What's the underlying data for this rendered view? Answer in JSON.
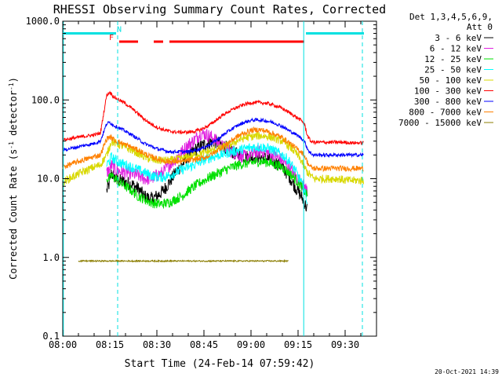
{
  "chart_data": {
    "type": "line",
    "title": "RHESSI Observing Summary Count Rates, Corrected",
    "xlabel": "Start Time (24-Feb-14 07:59:42)",
    "ylabel": "Corrected Count Rate (s⁻¹ detector⁻¹)",
    "x_unit": "minutes after 08:00",
    "xlim": [
      0,
      100
    ],
    "ylim": [
      0.1,
      1000
    ],
    "yscale": "log",
    "x_ticks": [
      {
        "value": 0,
        "label": "08:00"
      },
      {
        "value": 15,
        "label": "08:15"
      },
      {
        "value": 30,
        "label": "08:30"
      },
      {
        "value": 45,
        "label": "08:45"
      },
      {
        "value": 60,
        "label": "09:00"
      },
      {
        "value": 75,
        "label": "09:15"
      },
      {
        "value": 90,
        "label": "09:30"
      }
    ],
    "y_ticks": [
      {
        "value": 1000,
        "label": "1000.0"
      },
      {
        "value": 100,
        "label": "100.0"
      },
      {
        "value": 10,
        "label": "10.0"
      },
      {
        "value": 1,
        "label": "1.0"
      },
      {
        "value": 0.1,
        "label": "0.1"
      }
    ],
    "legend_title": [
      "Det 1,3,4,5,6,9,",
      "Att 0"
    ],
    "legend_position": "right",
    "series": [
      {
        "name": "3 - 6 keV",
        "color": "#000000",
        "noise": 0.2,
        "x": [
          14,
          15,
          15.5,
          16,
          17,
          18,
          20,
          22,
          24,
          26,
          28,
          30,
          32,
          34,
          36,
          38,
          40,
          42,
          44,
          46,
          48,
          50,
          52,
          54,
          56,
          58,
          60,
          62,
          64,
          66,
          68,
          70,
          72,
          74,
          76,
          77,
          78
        ],
        "y": [
          7,
          9,
          12,
          11,
          10,
          9.5,
          9,
          8.5,
          7.5,
          6,
          5.5,
          6,
          7,
          9,
          12,
          15,
          19,
          23,
          26,
          28,
          30,
          28,
          25,
          22,
          20,
          19,
          19,
          19,
          18.5,
          17.5,
          16,
          14,
          11,
          8,
          6,
          5,
          4
        ]
      },
      {
        "name": "6 - 12 keV",
        "color": "#e020e0",
        "noise": 0.2,
        "x": [
          14,
          15,
          15.5,
          16,
          17,
          18,
          20,
          22,
          24,
          26,
          28,
          30,
          32,
          34,
          36,
          38,
          40,
          42,
          44,
          46,
          48,
          50,
          52,
          54,
          56,
          58,
          60,
          62,
          64,
          66,
          68,
          70,
          72,
          74,
          76,
          77,
          78
        ],
        "y": [
          12,
          13,
          15,
          14,
          13,
          12.5,
          12,
          11.5,
          11,
          10,
          10,
          11,
          12,
          15,
          18,
          22,
          27,
          31,
          38,
          36,
          33,
          27,
          24,
          22,
          20,
          19,
          20,
          22,
          22,
          21,
          19,
          17,
          14,
          11,
          9,
          8,
          7
        ]
      },
      {
        "name": "12 - 25 keV",
        "color": "#00e000",
        "noise": 0.15,
        "x": [
          14,
          15,
          15.5,
          16,
          17,
          18,
          20,
          22,
          24,
          26,
          28,
          30,
          32,
          34,
          36,
          38,
          40,
          42,
          44,
          46,
          48,
          50,
          52,
          54,
          56,
          58,
          60,
          62,
          64,
          66,
          68,
          70,
          72,
          74,
          76,
          77,
          78
        ],
        "y": [
          10,
          10,
          11,
          10.5,
          10,
          9,
          8,
          7,
          6,
          5.5,
          5,
          4.8,
          4.8,
          5,
          5.5,
          6,
          7,
          8,
          9,
          10,
          11,
          12,
          13,
          14,
          15,
          15.5,
          16,
          16.5,
          16.5,
          16,
          15,
          14,
          12,
          10,
          8,
          7,
          6
        ]
      },
      {
        "name": "25 - 50 keV",
        "color": "#00ffff",
        "noise": 0.15,
        "x": [
          14,
          15,
          15.5,
          16,
          17,
          18,
          20,
          22,
          24,
          26,
          28,
          30,
          32,
          34,
          36,
          38,
          40,
          42,
          44,
          46,
          48,
          50,
          52,
          54,
          56,
          58,
          60,
          62,
          64,
          66,
          68,
          70,
          72,
          74,
          76,
          77,
          78
        ],
        "y": [
          15,
          17,
          19,
          18,
          17,
          16,
          15,
          14,
          13,
          12,
          11,
          10.5,
          10.5,
          11,
          12,
          13,
          14,
          15,
          16.5,
          18,
          19,
          20,
          21,
          22,
          23,
          24,
          25,
          25.5,
          25,
          24,
          22,
          20,
          17,
          13,
          9,
          7,
          5
        ]
      },
      {
        "name": "50 - 100 keV",
        "color": "#d8d800",
        "noise": 0.12,
        "x": [
          0,
          2,
          4,
          6,
          8,
          10,
          12,
          14,
          15,
          15.5,
          16,
          17,
          18,
          20,
          22,
          24,
          26,
          28,
          30,
          32,
          34,
          36,
          38,
          40,
          42,
          44,
          46,
          48,
          50,
          52,
          54,
          56,
          58,
          60,
          62,
          64,
          66,
          68,
          70,
          72,
          74,
          76,
          77,
          78,
          79,
          80,
          82,
          84,
          86,
          88,
          90,
          92,
          94,
          96
        ],
        "y": [
          9,
          10,
          11,
          12,
          13,
          14,
          15,
          20,
          26,
          30,
          29,
          28,
          27,
          25,
          23,
          21,
          19,
          17.5,
          17,
          17,
          17,
          17.5,
          18,
          19,
          20,
          21,
          22,
          23,
          24,
          26,
          28,
          31,
          33,
          34,
          35,
          35,
          34,
          32,
          30,
          26,
          22,
          17,
          14,
          12,
          11,
          10,
          10,
          10,
          10,
          10,
          9.5,
          9.5,
          9.5,
          9.5
        ]
      },
      {
        "name": "100 - 300 keV",
        "color": "#ff0000",
        "noise": 0.05,
        "x": [
          0,
          2,
          4,
          6,
          8,
          10,
          12,
          14,
          15,
          15.5,
          16,
          17,
          18,
          20,
          22,
          24,
          26,
          28,
          30,
          32,
          34,
          36,
          38,
          40,
          42,
          44,
          46,
          48,
          50,
          52,
          54,
          56,
          58,
          60,
          62,
          64,
          66,
          68,
          70,
          72,
          74,
          76,
          77,
          78,
          79,
          80,
          82,
          84,
          86,
          88,
          90,
          92,
          94,
          96
        ],
        "y": [
          31,
          32,
          33,
          34,
          35,
          36,
          38,
          115,
          125,
          120,
          112,
          105,
          100,
          90,
          78,
          67,
          57,
          50,
          45,
          42,
          40,
          39,
          39,
          39,
          40,
          42,
          46,
          52,
          60,
          68,
          75,
          82,
          88,
          92,
          93,
          92,
          89,
          84,
          78,
          70,
          62,
          55,
          50,
          35,
          30,
          29,
          29,
          29,
          29,
          29,
          29,
          28.5,
          28.5,
          28.5
        ]
      },
      {
        "name": "300 - 800 keV",
        "color": "#0000ff",
        "noise": 0.05,
        "x": [
          0,
          2,
          4,
          6,
          8,
          10,
          12,
          14,
          15,
          15.5,
          16,
          17,
          18,
          20,
          22,
          24,
          26,
          28,
          30,
          32,
          34,
          36,
          38,
          40,
          42,
          44,
          46,
          48,
          50,
          52,
          54,
          56,
          58,
          60,
          62,
          64,
          66,
          68,
          70,
          72,
          74,
          76,
          77,
          78,
          79,
          80,
          82,
          84,
          86,
          88,
          90,
          92,
          94,
          96
        ],
        "y": [
          23,
          24,
          25,
          26,
          27,
          28,
          30,
          50,
          52,
          50,
          48,
          46,
          44,
          40,
          36,
          32,
          28,
          26,
          24,
          23,
          22,
          22,
          22,
          22,
          23,
          24,
          26,
          29,
          33,
          38,
          43,
          48,
          52,
          55,
          56,
          55,
          53,
          50,
          46,
          41,
          37,
          33,
          30,
          24,
          21,
          20,
          20,
          20,
          20,
          20,
          20,
          20,
          20,
          20
        ]
      },
      {
        "name": "800 - 7000 keV",
        "color": "#ff8000",
        "noise": 0.08,
        "x": [
          0,
          2,
          4,
          6,
          8,
          10,
          12,
          14,
          15,
          15.5,
          16,
          17,
          18,
          20,
          22,
          24,
          26,
          28,
          30,
          32,
          34,
          36,
          38,
          40,
          42,
          44,
          46,
          48,
          50,
          52,
          54,
          56,
          58,
          60,
          62,
          64,
          66,
          68,
          70,
          72,
          74,
          76,
          77,
          78,
          79,
          80,
          82,
          84,
          86,
          88,
          90,
          92,
          94,
          96
        ],
        "y": [
          14,
          15,
          16,
          17,
          18,
          19,
          20,
          32,
          34,
          33,
          32,
          30,
          29,
          27,
          25,
          23,
          21,
          19,
          18,
          17,
          16.5,
          16.5,
          16.5,
          17,
          17.5,
          18,
          19,
          21,
          24,
          27,
          31,
          35,
          38,
          41,
          42,
          41,
          39,
          36,
          33,
          29,
          25,
          22,
          20,
          16,
          14,
          13.5,
          13.5,
          13.5,
          13.5,
          13.5,
          13.5,
          13.5,
          13.5,
          13.5
        ]
      },
      {
        "name": "7000 - 15000 keV",
        "color": "#8b7d00",
        "noise": 0.02,
        "x": [
          5,
          8,
          10,
          12,
          14,
          15,
          16,
          17,
          18,
          20,
          22,
          24,
          26,
          28,
          30,
          32,
          34,
          36,
          38,
          40,
          42,
          44,
          46,
          48,
          50,
          52,
          54,
          56,
          58,
          60,
          62,
          64,
          66,
          68,
          70,
          72
        ],
        "y": [
          0.9,
          0.9,
          0.9,
          0.9,
          0.9,
          0.9,
          0.9,
          0.9,
          0.9,
          0.9,
          0.9,
          0.9,
          0.9,
          0.9,
          0.9,
          0.9,
          0.9,
          0.9,
          0.9,
          0.9,
          0.9,
          0.9,
          0.9,
          0.9,
          0.9,
          0.9,
          0.9,
          0.9,
          0.9,
          0.9,
          0.9,
          0.9,
          0.9,
          0.9,
          0.9,
          0.9
        ]
      }
    ],
    "flag_rows": [
      {
        "label": "N",
        "color": "#00e0e0",
        "y": 700,
        "segments": [
          [
            0,
            17
          ],
          [
            77.5,
            96
          ]
        ],
        "label_x": 18
      },
      {
        "label": "F",
        "color": "#ff0000",
        "y": 550,
        "segments": [
          [
            18,
            24
          ],
          [
            29,
            32
          ],
          [
            34,
            77
          ]
        ],
        "label_x": 15.5
      }
    ],
    "vertical_lines": [
      {
        "x": 0.2,
        "color": "#00e0e0",
        "style": "solid"
      },
      {
        "x": 17.5,
        "color": "#00e0e0",
        "style": "dashed"
      },
      {
        "x": 76.8,
        "color": "#00e0e0",
        "style": "solid"
      },
      {
        "x": 95.5,
        "color": "#00e0e0",
        "style": "dashed"
      }
    ]
  },
  "footer": {
    "date_stamp": "20-Oct-2021 14:39"
  }
}
